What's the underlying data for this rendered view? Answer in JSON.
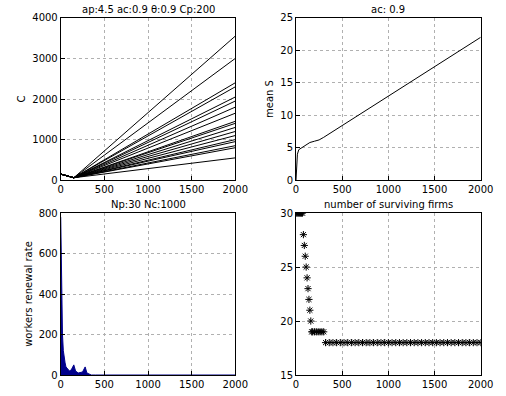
{
  "chart_data": [
    {
      "type": "line",
      "title": "ap:4.5 ac:0.9 θ:0.9 Cp:200",
      "y_label": "C",
      "x": [
        0,
        50,
        150,
        2000
      ],
      "series": [
        {
          "color": "#000000",
          "values": [
            150,
            120,
            60,
            3550
          ]
        },
        {
          "color": "#000000",
          "values": [
            150,
            120,
            60,
            3000
          ]
        },
        {
          "color": "#000000",
          "values": [
            150,
            120,
            60,
            2400
          ]
        },
        {
          "color": "#000000",
          "values": [
            150,
            120,
            60,
            2300
          ]
        },
        {
          "color": "#000000",
          "values": [
            150,
            120,
            60,
            2050
          ]
        },
        {
          "color": "#000000",
          "values": [
            150,
            120,
            60,
            1950
          ]
        },
        {
          "color": "#000000",
          "values": [
            150,
            120,
            60,
            1800
          ]
        },
        {
          "color": "#000000",
          "values": [
            150,
            120,
            60,
            1650
          ]
        },
        {
          "color": "#000000",
          "values": [
            150,
            120,
            60,
            1450
          ]
        },
        {
          "color": "#000000",
          "values": [
            150,
            120,
            60,
            1400
          ]
        },
        {
          "color": "#000000",
          "values": [
            150,
            120,
            60,
            1300
          ]
        },
        {
          "color": "#000000",
          "values": [
            150,
            120,
            60,
            1200
          ]
        },
        {
          "color": "#000000",
          "values": [
            150,
            120,
            60,
            1100
          ]
        },
        {
          "color": "#000000",
          "values": [
            150,
            120,
            60,
            1000
          ]
        },
        {
          "color": "#000000",
          "values": [
            150,
            120,
            60,
            950
          ]
        },
        {
          "color": "#000000",
          "values": [
            150,
            120,
            60,
            850
          ]
        },
        {
          "color": "#000000",
          "values": [
            150,
            120,
            60,
            800
          ]
        },
        {
          "color": "#000000",
          "values": [
            150,
            120,
            60,
            550
          ]
        }
      ],
      "xlim": [
        0,
        2000
      ],
      "xticks": [
        0,
        500,
        1000,
        1500,
        2000
      ],
      "ylim": [
        0,
        4000
      ],
      "yticks": [
        0,
        1000,
        2000,
        3000,
        4000
      ],
      "grid": true
    },
    {
      "type": "line",
      "title": "ac: 0.9",
      "y_label": "mean S",
      "x": [
        0,
        5,
        15,
        30,
        60,
        100,
        150,
        200,
        250,
        300,
        2000
      ],
      "values": [
        0,
        2.5,
        4,
        4.7,
        5,
        5.3,
        5.8,
        6,
        6.2,
        6.6,
        22
      ],
      "color": "#000000",
      "xlim": [
        0,
        2000
      ],
      "xticks": [
        0,
        500,
        1000,
        1500,
        2000
      ],
      "ylim": [
        0,
        25
      ],
      "yticks": [
        0,
        5,
        10,
        15,
        20,
        25
      ],
      "grid": true
    },
    {
      "type": "area",
      "title": "Np:30 Nc:1000",
      "y_label": "workers renewal rate",
      "x": [
        0,
        5,
        10,
        15,
        20,
        30,
        40,
        50,
        60,
        80,
        100,
        120,
        150,
        170,
        200,
        250,
        280,
        300,
        320,
        350,
        400,
        500,
        1000,
        2000
      ],
      "values": [
        780,
        600,
        420,
        300,
        200,
        120,
        80,
        60,
        40,
        30,
        20,
        25,
        50,
        20,
        10,
        15,
        40,
        10,
        5,
        0,
        0,
        0,
        0,
        0
      ],
      "color": "#00008b",
      "xlim": [
        0,
        2000
      ],
      "xticks": [
        0,
        500,
        1000,
        1500,
        2000
      ],
      "ylim": [
        0,
        800
      ],
      "yticks": [
        0,
        200,
        400,
        600,
        800
      ],
      "grid": true
    },
    {
      "type": "scatter",
      "title": "number of surviving firms",
      "marker": "star",
      "x": [
        0,
        10,
        20,
        30,
        40,
        50,
        60,
        70,
        80,
        90,
        100,
        110,
        120,
        130,
        140,
        150,
        160,
        170,
        180,
        200,
        220,
        240,
        260,
        280,
        300,
        320,
        360,
        400,
        440,
        480,
        520,
        560,
        600,
        640,
        680,
        720,
        760,
        800,
        840,
        880,
        920,
        960,
        1000,
        1040,
        1080,
        1120,
        1160,
        1200,
        1240,
        1280,
        1320,
        1360,
        1400,
        1440,
        1480,
        1520,
        1560,
        1600,
        1640,
        1680,
        1720,
        1760,
        1800,
        1840,
        1880,
        1920,
        1960,
        2000
      ],
      "values": [
        30,
        30,
        30,
        30,
        30,
        30,
        30,
        30,
        28,
        27,
        26,
        25,
        24,
        23,
        22,
        21,
        20,
        19,
        19,
        19,
        19,
        19,
        19,
        19,
        19,
        18,
        18,
        18,
        18,
        18,
        18,
        18,
        18,
        18,
        18,
        18,
        18,
        18,
        18,
        18,
        18,
        18,
        18,
        18,
        18,
        18,
        18,
        18,
        18,
        18,
        18,
        18,
        18,
        18,
        18,
        18,
        18,
        18,
        18,
        18,
        18,
        18,
        18,
        18,
        18,
        18,
        18,
        18
      ],
      "color": "#000000",
      "xlim": [
        0,
        2000
      ],
      "xticks": [
        0,
        500,
        1000,
        1500,
        2000
      ],
      "ylim": [
        15,
        30
      ],
      "yticks": [
        15,
        20,
        25,
        30
      ],
      "grid": true
    }
  ]
}
